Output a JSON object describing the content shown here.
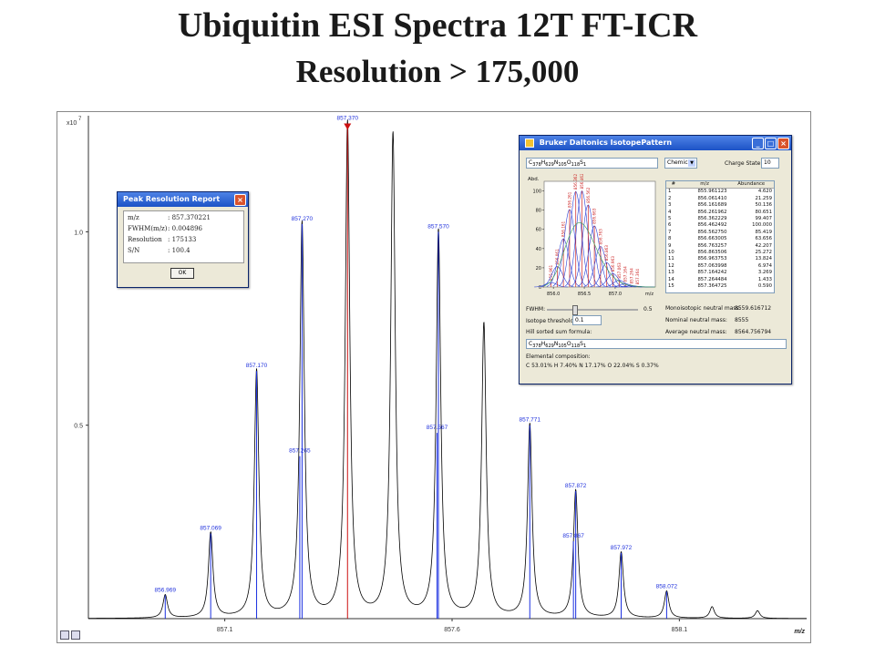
{
  "slide": {
    "title": "Ubiquitin ESI Spectra 12T FT-ICR",
    "subtitle": "Resolution > 175,000"
  },
  "colors": {
    "spectrum": "#000000",
    "calc_line": "#1a2fe0",
    "selected_line": "#cc1111",
    "label": "#2233dd"
  },
  "chart_data": [
    {
      "type": "line",
      "title": "",
      "xlabel": "m/z",
      "ylabel": "",
      "y_exponent_label": "x10",
      "y_exponent": "7",
      "xlim": [
        856.8,
        858.38
      ],
      "ylim": [
        0,
        1.3
      ],
      "x_ticks": [
        857.1,
        857.6,
        858.1
      ],
      "x_tick_labels": [
        "857.1",
        "857.6",
        "858.1"
      ],
      "y_ticks": [
        0.5,
        1.0
      ],
      "y_tick_labels": [
        "0.5",
        "1.0"
      ],
      "peak_width": 0.006,
      "peaks": [
        {
          "x": 856.969,
          "y": 0.06
        },
        {
          "x": 857.069,
          "y": 0.22
        },
        {
          "x": 857.17,
          "y": 0.64
        },
        {
          "x": 857.27,
          "y": 1.02
        },
        {
          "x": 857.37,
          "y": 1.28
        },
        {
          "x": 857.47,
          "y": 1.25
        },
        {
          "x": 857.57,
          "y": 1.0
        },
        {
          "x": 857.67,
          "y": 0.76
        },
        {
          "x": 857.771,
          "y": 0.5
        },
        {
          "x": 857.872,
          "y": 0.33
        },
        {
          "x": 857.972,
          "y": 0.17
        },
        {
          "x": 858.072,
          "y": 0.07
        },
        {
          "x": 858.172,
          "y": 0.03
        },
        {
          "x": 858.272,
          "y": 0.02
        }
      ],
      "stick_lines": [
        {
          "x": 856.969,
          "y": 0.06,
          "label": "856.969",
          "color": "blue"
        },
        {
          "x": 857.069,
          "y": 0.22,
          "label": "857.069",
          "color": "blue"
        },
        {
          "x": 857.17,
          "y": 0.64,
          "label": "857.170",
          "color": "blue"
        },
        {
          "x": 857.265,
          "y": 0.42,
          "label": "857.265",
          "color": "blue"
        },
        {
          "x": 857.27,
          "y": 1.02,
          "label": "857.270",
          "color": "blue"
        },
        {
          "x": 857.37,
          "y": 1.28,
          "label": "857.370",
          "color": "red"
        },
        {
          "x": 857.567,
          "y": 0.48,
          "label": "857.567",
          "color": "blue"
        },
        {
          "x": 857.57,
          "y": 1.0,
          "label": "857.570",
          "color": "blue"
        },
        {
          "x": 857.771,
          "y": 0.5,
          "label": "857.771",
          "color": "blue"
        },
        {
          "x": 857.867,
          "y": 0.2,
          "label": "857.867",
          "color": "blue"
        },
        {
          "x": 857.872,
          "y": 0.33,
          "label": "857.872",
          "color": "blue"
        },
        {
          "x": 857.972,
          "y": 0.17,
          "label": "857.972",
          "color": "blue"
        },
        {
          "x": 858.072,
          "y": 0.07,
          "label": "858.072",
          "color": "blue"
        }
      ]
    },
    {
      "type": "line",
      "title": "",
      "ylabel": "Abd.",
      "xlabel": "m/z",
      "xlim": [
        855.85,
        857.65
      ],
      "ylim": [
        0,
        110
      ],
      "x_ticks": [
        856.0,
        856.5,
        857.0
      ],
      "x_tick_labels": [
        "856.0",
        "856.5",
        "857.0"
      ],
      "y_ticks": [
        0,
        20,
        40,
        60,
        80,
        100
      ],
      "y_tick_labels": [
        "0",
        "20",
        "40",
        "60",
        "80",
        "100"
      ],
      "series_source": "isotope_pattern.table.rows"
    }
  ],
  "peak_report": {
    "title": "Peak Resolution Report",
    "rows": [
      {
        "label": "m/z",
        "value": ": 857.370221"
      },
      {
        "label": "FWHM(m/z)",
        "value": ": 0.004896"
      },
      {
        "label": "Resolution",
        "value": ": 175133"
      },
      {
        "label": "S/N",
        "value": ": 100.4"
      }
    ],
    "ok_label": "OK",
    "close_icon": "×"
  },
  "isotope_pattern": {
    "title": "Bruker Daltonics IsotopePattern",
    "app_icon": "iso-app-icon",
    "formula_input": "C378H629N105O118S1",
    "formula_html": "C<sub>378</sub>H<sub>629</sub>N<sub>105</sub>O<sub>118</sub>S<sub>1</sub>",
    "mode_select": "Chemical",
    "charge_label": "Charge State:",
    "charge_value": "10",
    "fwhm_label": "FWHM:",
    "fwhm_value": "0.5",
    "iso_threshold_label": "Isotope threshold [%]:",
    "iso_threshold_value": "0.1",
    "hill_label": "Hill sorted sum formula:",
    "mono_label": "Monoisotopic neutral mass:",
    "mono_value": "8559.616712",
    "nominal_label": "Nominal neutral mass:",
    "nominal_value": "8555",
    "avg_label": "Average neutral mass:",
    "avg_value": "8564.756794",
    "elemental_label": "Elemental composition:",
    "elemental_value": "C 53.01% H 7.40% N 17.17% O 22.04% S 0.37%",
    "table": {
      "headers": [
        "#",
        "m/z",
        "Abundance"
      ],
      "rows": [
        [
          "1",
          "855.961123",
          "4.620"
        ],
        [
          "2",
          "856.061410",
          "21.259"
        ],
        [
          "3",
          "856.161689",
          "50.136"
        ],
        [
          "4",
          "856.261962",
          "80.651"
        ],
        [
          "5",
          "856.362229",
          "99.407"
        ],
        [
          "6",
          "856.462492",
          "100.000"
        ],
        [
          "7",
          "856.562750",
          "85.419"
        ],
        [
          "8",
          "856.663005",
          "63.656"
        ],
        [
          "9",
          "856.763257",
          "42.207"
        ],
        [
          "10",
          "856.863506",
          "25.272"
        ],
        [
          "11",
          "856.963753",
          "13.824"
        ],
        [
          "12",
          "857.063998",
          "6.974"
        ],
        [
          "13",
          "857.164242",
          "3.269"
        ],
        [
          "14",
          "857.264484",
          "1.433"
        ],
        [
          "15",
          "857.364725",
          "0.590"
        ]
      ]
    }
  }
}
